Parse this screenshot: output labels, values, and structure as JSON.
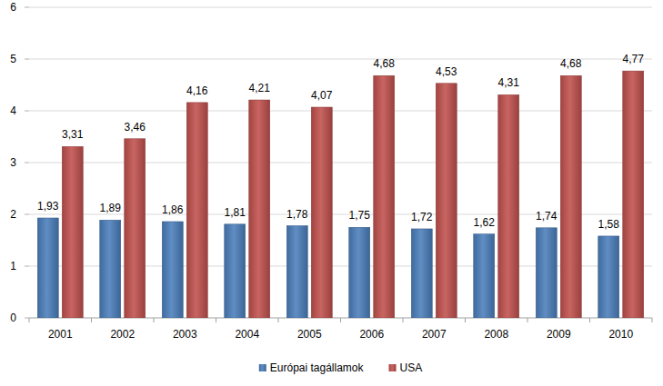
{
  "chart_data": {
    "type": "bar",
    "categories": [
      "2001",
      "2002",
      "2003",
      "2004",
      "2005",
      "2006",
      "2007",
      "2008",
      "2009",
      "2010"
    ],
    "series": [
      {
        "name": "Európai tagállamok",
        "color": "#4a7ebb",
        "values": [
          1.93,
          1.89,
          1.86,
          1.81,
          1.78,
          1.75,
          1.72,
          1.62,
          1.74,
          1.58
        ],
        "value_labels": [
          "1,93",
          "1,89",
          "1,86",
          "1,81",
          "1,78",
          "1,75",
          "1,72",
          "1,62",
          "1,74",
          "1,58"
        ]
      },
      {
        "name": "USA",
        "color": "#c0504d",
        "values": [
          3.31,
          3.46,
          4.16,
          4.21,
          4.07,
          4.68,
          4.53,
          4.31,
          4.68,
          4.77
        ],
        "value_labels": [
          "3,31",
          "3,46",
          "4,16",
          "4,21",
          "4,07",
          "4,68",
          "4,53",
          "4,31",
          "4,68",
          "4,77"
        ]
      }
    ],
    "ylim": [
      0,
      6
    ],
    "yticks": [
      0,
      1,
      2,
      3,
      4,
      5,
      6
    ],
    "grid": true,
    "legend": "bottom",
    "data_labels": true
  }
}
